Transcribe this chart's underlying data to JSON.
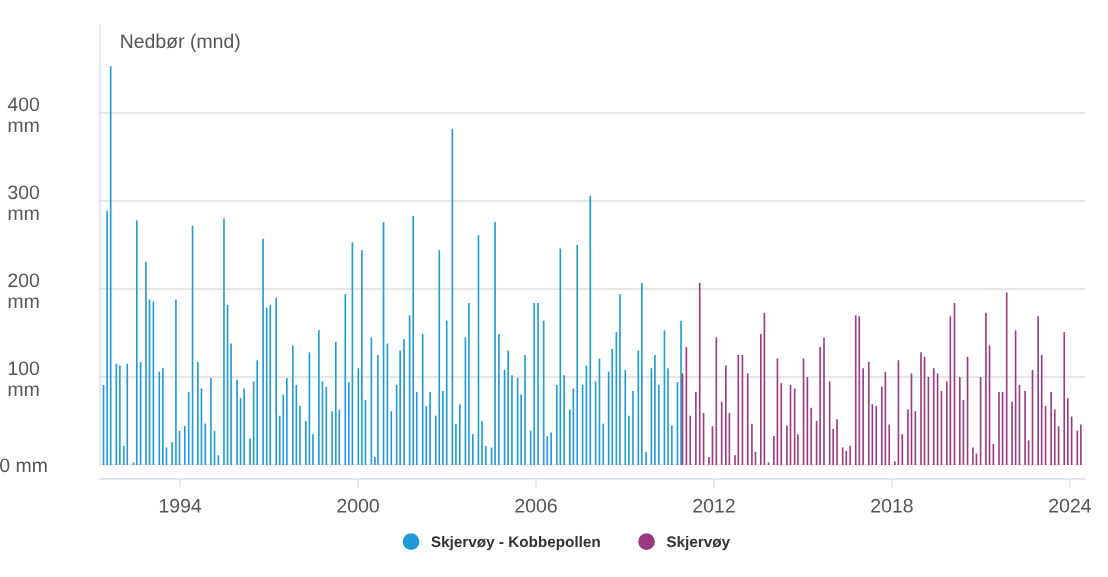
{
  "chart_data": {
    "type": "bar",
    "ylabel": "Nedbør (mnd)",
    "xlim": [
      1991.3,
      2024.51
    ],
    "xticks": [
      1994,
      2000,
      2006,
      2012,
      2018,
      2024
    ],
    "ylim": [
      0,
      500
    ],
    "yticks": [
      {
        "value": 0,
        "label": "0 mm"
      },
      {
        "value": 100,
        "label": "100 mm"
      },
      {
        "value": 200,
        "label": "200 mm"
      },
      {
        "value": 300,
        "label": "300 mm"
      },
      {
        "value": 400,
        "label": "400 mm"
      }
    ],
    "grid": "y",
    "legend": "bottom",
    "series": [
      {
        "name": "Skjervøy - Kobbepollen",
        "color": "#1f9ad6",
        "x": [
          1991.42,
          1991.54,
          1991.66,
          1991.85,
          1991.97,
          1992.1,
          1992.22,
          1992.43,
          1992.54,
          1992.67,
          1992.85,
          1992.97,
          1993.1,
          1993.3,
          1993.42,
          1993.54,
          1993.73,
          1993.86,
          1993.98,
          1994.16,
          1994.29,
          1994.42,
          1994.6,
          1994.72,
          1994.85,
          1995.04,
          1995.16,
          1995.29,
          1995.48,
          1995.6,
          1995.72,
          1995.92,
          1996.04,
          1996.16,
          1996.36,
          1996.48,
          1996.6,
          1996.8,
          1996.92,
          1997.04,
          1997.24,
          1997.36,
          1997.48,
          1997.6,
          1997.8,
          1997.92,
          1998.04,
          1998.24,
          1998.36,
          1998.48,
          1998.68,
          1998.8,
          1998.93,
          1999.13,
          1999.25,
          1999.37,
          1999.57,
          1999.69,
          1999.81,
          2000.01,
          2000.13,
          2000.25,
          2000.45,
          2000.57,
          2000.67,
          2000.86,
          2000.99,
          2001.12,
          2001.3,
          2001.42,
          2001.55,
          2001.74,
          2001.86,
          2001.98,
          2002.18,
          2002.3,
          2002.43,
          2002.62,
          2002.74,
          2002.86,
          2002.99,
          2003.18,
          2003.3,
          2003.43,
          2003.62,
          2003.74,
          2003.87,
          2004.06,
          2004.18,
          2004.31,
          2004.5,
          2004.62,
          2004.75,
          2004.94,
          2005.06,
          2005.19,
          2005.38,
          2005.5,
          2005.63,
          2005.82,
          2005.94,
          2006.07,
          2006.26,
          2006.38,
          2006.51,
          2006.7,
          2006.82,
          2006.95,
          2007.14,
          2007.26,
          2007.39,
          2007.57,
          2007.7,
          2007.83,
          2008.01,
          2008.14,
          2008.27,
          2008.45,
          2008.57,
          2008.71,
          2008.83,
          2009.01,
          2009.13,
          2009.27,
          2009.45,
          2009.57,
          2009.71,
          2009.89,
          2010.01,
          2010.14,
          2010.33,
          2010.45,
          2010.58,
          2010.77,
          2010.89
        ],
        "values": [
          91,
          289,
          453,
          115,
          113,
          22,
          115,
          3,
          278,
          117,
          231,
          188,
          186,
          106,
          110,
          20,
          26,
          188,
          39,
          44,
          83,
          272,
          117,
          87,
          47,
          99,
          39,
          11,
          280,
          182,
          138,
          97,
          76,
          87,
          30,
          95,
          119,
          257,
          179,
          182,
          190,
          56,
          80,
          99,
          136,
          91,
          67,
          50,
          128,
          35,
          153,
          95,
          89,
          61,
          140,
          63,
          194,
          94,
          253,
          110,
          244,
          74,
          145,
          9,
          125,
          276,
          138,
          61,
          91,
          130,
          143,
          170,
          283,
          83,
          149,
          67,
          83,
          56,
          244,
          84,
          164,
          382,
          47,
          69,
          145,
          184,
          35,
          261,
          50,
          22,
          20,
          276,
          149,
          108,
          130,
          102,
          99,
          80,
          125,
          39,
          184,
          184,
          164,
          33,
          37,
          91,
          246,
          102,
          63,
          87,
          250,
          91,
          113,
          306,
          95,
          121,
          47,
          106,
          132,
          151,
          194,
          108,
          56,
          84,
          130,
          207,
          15,
          110,
          125,
          91,
          153,
          110,
          45,
          94,
          164
        ]
      },
      {
        "name": "Skjervøy",
        "color": "#9b3a83",
        "x": [
          2010.94,
          2011.07,
          2011.2,
          2011.39,
          2011.52,
          2011.65,
          2011.83,
          2011.95,
          2012.08,
          2012.26,
          2012.4,
          2012.52,
          2012.71,
          2012.82,
          2012.96,
          2013.14,
          2013.28,
          2013.4,
          2013.58,
          2013.7,
          2013.84,
          2014.02,
          2014.14,
          2014.27,
          2014.46,
          2014.58,
          2014.72,
          2014.83,
          2015.02,
          2015.15,
          2015.28,
          2015.46,
          2015.58,
          2015.71,
          2015.9,
          2016.02,
          2016.15,
          2016.34,
          2016.46,
          2016.59,
          2016.78,
          2016.9,
          2017.03,
          2017.22,
          2017.34,
          2017.47,
          2017.66,
          2017.78,
          2017.91,
          2018.1,
          2018.22,
          2018.35,
          2018.54,
          2018.66,
          2018.79,
          2018.98,
          2019.1,
          2019.23,
          2019.41,
          2019.54,
          2019.67,
          2019.85,
          2019.97,
          2020.11,
          2020.29,
          2020.41,
          2020.55,
          2020.73,
          2020.85,
          2020.99,
          2021.17,
          2021.29,
          2021.42,
          2021.61,
          2021.73,
          2021.87,
          2022.05,
          2022.17,
          2022.3,
          2022.49,
          2022.61,
          2022.74,
          2022.93,
          2023.05,
          2023.18,
          2023.37,
          2023.49,
          2023.62,
          2023.81,
          2023.93,
          2024.06,
          2024.25,
          2024.37
        ],
        "values": [
          104,
          134,
          56,
          83,
          207,
          59,
          9,
          44,
          145,
          72,
          113,
          59,
          11,
          125,
          125,
          104,
          47,
          15,
          149,
          173,
          3,
          33,
          121,
          93,
          45,
          91,
          87,
          35,
          121,
          100,
          65,
          50,
          134,
          145,
          95,
          41,
          52,
          20,
          16,
          22,
          170,
          169,
          110,
          117,
          69,
          67,
          89,
          106,
          46,
          4,
          119,
          35,
          63,
          104,
          61,
          128,
          123,
          100,
          110,
          104,
          84,
          95,
          169,
          184,
          100,
          74,
          123,
          20,
          13,
          100,
          173,
          136,
          24,
          83,
          83,
          196,
          72,
          153,
          91,
          84,
          28,
          108,
          169,
          125,
          67,
          83,
          63,
          44,
          151,
          76,
          55,
          39,
          46
        ]
      }
    ]
  }
}
